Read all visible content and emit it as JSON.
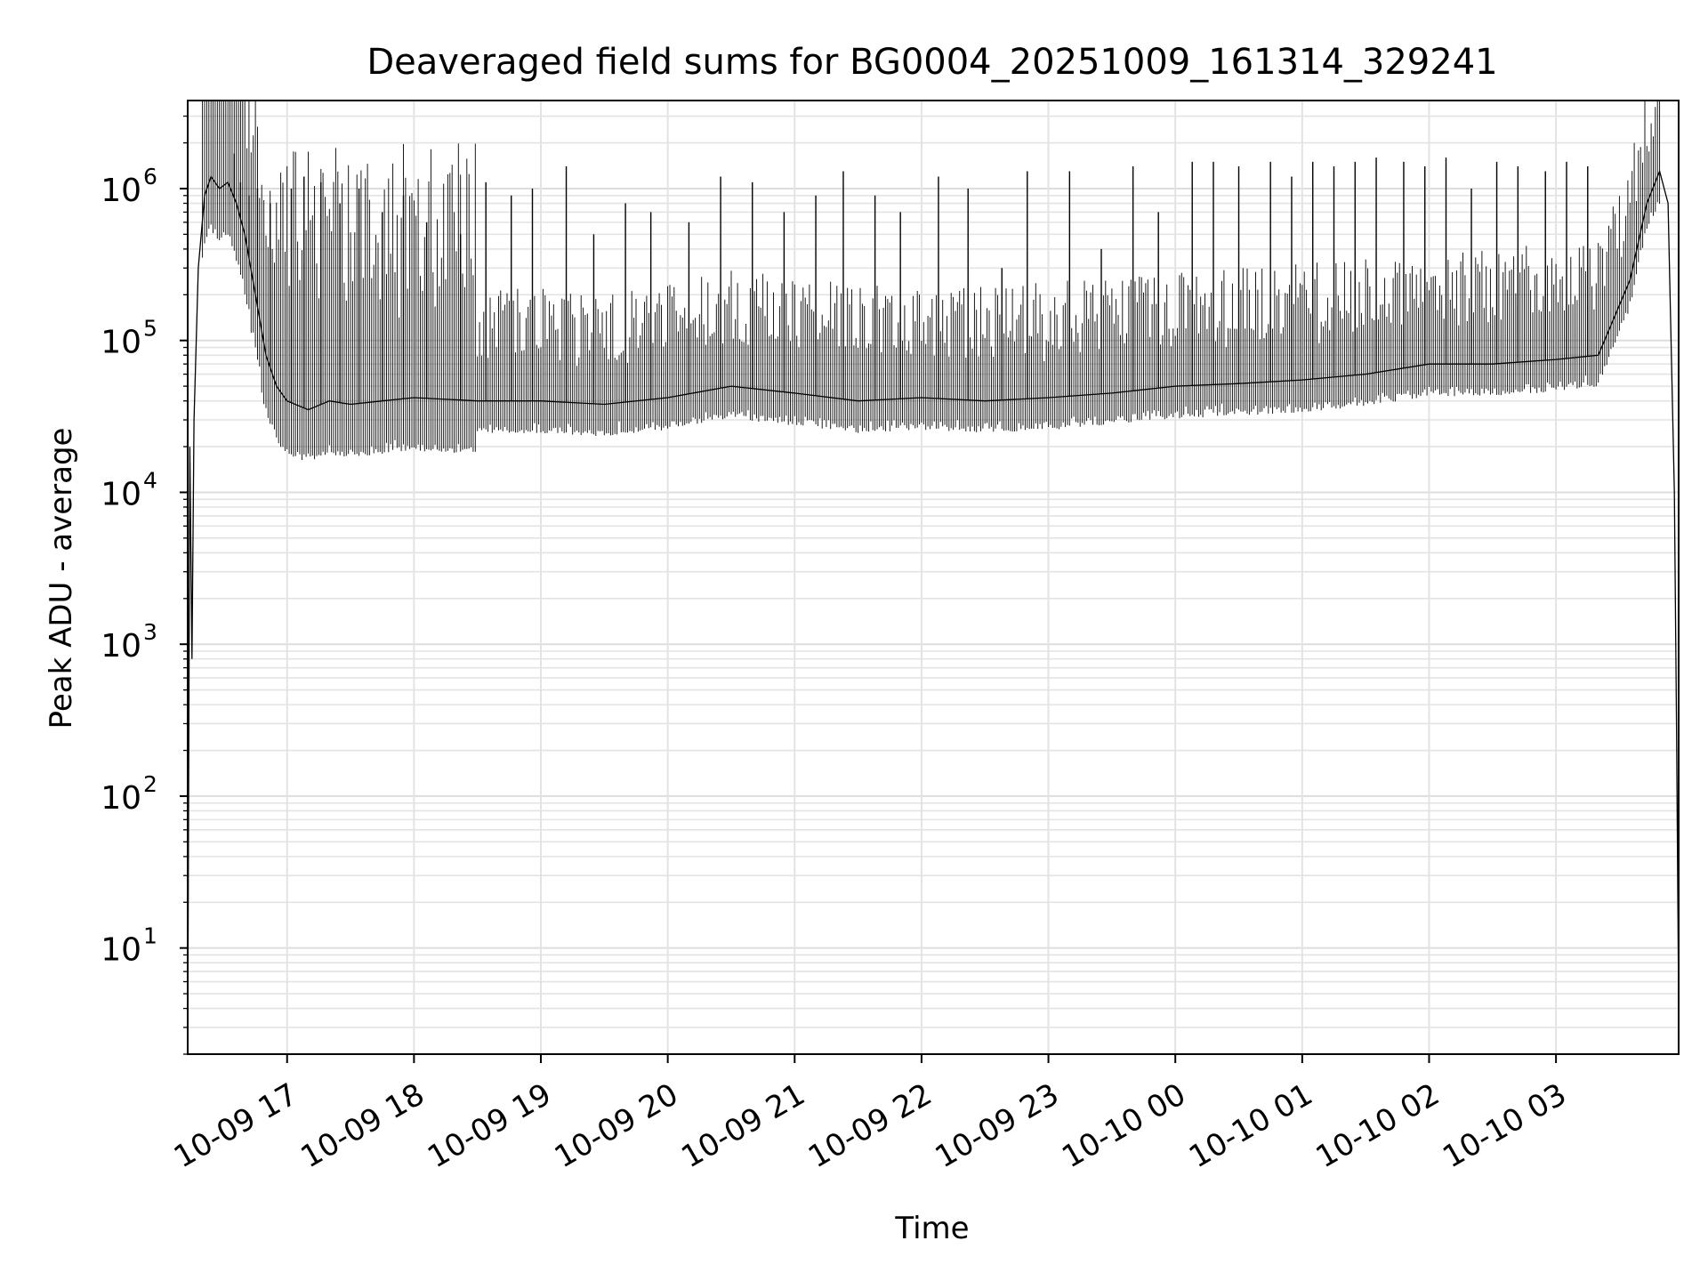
{
  "chart_data": {
    "type": "line",
    "title": "Deaveraged field sums for BG0004_20251009_161314_329241",
    "xlabel": "Time",
    "ylabel": "Peak ADU - average",
    "y_scale": "log",
    "ylim": [
      2,
      3800000
    ],
    "xlim": [
      "2025-10-09 16:13",
      "2025-10-10 03:58"
    ],
    "grid": true,
    "grid_minor": true,
    "legend": "none",
    "line_color": "#000000",
    "x_ticks": [
      {
        "value": "2025-10-09 17:00",
        "label": "10-09 17"
      },
      {
        "value": "2025-10-09 18:00",
        "label": "10-09 18"
      },
      {
        "value": "2025-10-09 19:00",
        "label": "10-09 19"
      },
      {
        "value": "2025-10-09 20:00",
        "label": "10-09 20"
      },
      {
        "value": "2025-10-09 21:00",
        "label": "10-09 21"
      },
      {
        "value": "2025-10-09 22:00",
        "label": "10-09 22"
      },
      {
        "value": "2025-10-09 23:00",
        "label": "10-09 23"
      },
      {
        "value": "2025-10-10 00:00",
        "label": "10-10 00"
      },
      {
        "value": "2025-10-10 01:00",
        "label": "10-10 01"
      },
      {
        "value": "2025-10-10 02:00",
        "label": "10-10 02"
      },
      {
        "value": "2025-10-10 03:00",
        "label": "10-10 03"
      }
    ],
    "y_ticks": [
      {
        "value": 10,
        "base": "10",
        "exp": "1"
      },
      {
        "value": 100,
        "base": "10",
        "exp": "2"
      },
      {
        "value": 1000,
        "base": "10",
        "exp": "3"
      },
      {
        "value": 10000,
        "base": "10",
        "exp": "4"
      },
      {
        "value": 100000,
        "base": "10",
        "exp": "5"
      },
      {
        "value": 1000000,
        "base": "10",
        "exp": "6"
      }
    ],
    "series": [
      {
        "x": [
          "2025-10-09 16:13",
          "2025-10-09 16:14",
          "2025-10-09 16:15",
          "2025-10-09 16:16",
          "2025-10-09 16:18",
          "2025-10-09 16:21",
          "2025-10-09 16:24",
          "2025-10-09 16:28",
          "2025-10-09 16:32",
          "2025-10-09 16:36",
          "2025-10-09 16:40",
          "2025-10-09 16:45",
          "2025-10-09 16:50",
          "2025-10-09 16:55",
          "2025-10-09 17:00",
          "2025-10-09 17:10",
          "2025-10-09 17:20",
          "2025-10-09 17:30",
          "2025-10-09 17:45",
          "2025-10-09 18:00",
          "2025-10-09 18:30",
          "2025-10-09 19:00",
          "2025-10-09 19:30",
          "2025-10-09 20:00",
          "2025-10-09 20:30",
          "2025-10-09 21:00",
          "2025-10-09 21:30",
          "2025-10-09 22:00",
          "2025-10-09 22:30",
          "2025-10-09 23:00",
          "2025-10-09 23:30",
          "2025-10-10 00:00",
          "2025-10-10 00:30",
          "2025-10-10 01:00",
          "2025-10-10 01:30",
          "2025-10-10 02:00",
          "2025-10-10 02:30",
          "2025-10-10 03:00",
          "2025-10-10 03:20",
          "2025-10-10 03:35",
          "2025-10-10 03:43",
          "2025-10-10 03:49",
          "2025-10-10 03:53",
          "2025-10-10 03:56",
          "2025-10-10 03:57",
          "2025-10-10 03:58"
        ],
        "y": [
          2,
          20000,
          800,
          30000,
          300000,
          900000,
          1200000,
          1000000,
          1100000,
          800000,
          500000,
          200000,
          80000,
          50000,
          40000,
          35000,
          40000,
          38000,
          40000,
          42000,
          40000,
          40000,
          38000,
          42000,
          50000,
          45000,
          40000,
          42000,
          40000,
          42000,
          45000,
          50000,
          52000,
          55000,
          60000,
          70000,
          70000,
          75000,
          80000,
          250000,
          800000,
          1300000,
          800000,
          10000,
          300,
          4
        ]
      }
    ],
    "spikes": {
      "x": [
        "2025-10-09 16:35",
        "2025-10-09 16:38",
        "2025-10-09 16:42",
        "2025-10-09 16:46",
        "2025-10-09 16:52",
        "2025-10-09 17:02",
        "2025-10-09 17:08",
        "2025-10-09 17:16",
        "2025-10-09 17:25",
        "2025-10-09 17:34",
        "2025-10-09 17:45",
        "2025-10-09 17:55",
        "2025-10-09 18:06",
        "2025-10-09 18:22",
        "2025-10-09 18:34",
        "2025-10-09 18:46",
        "2025-10-09 18:56",
        "2025-10-09 19:12",
        "2025-10-09 19:25",
        "2025-10-09 19:40",
        "2025-10-09 19:52",
        "2025-10-09 20:10",
        "2025-10-09 20:25",
        "2025-10-09 20:40",
        "2025-10-09 20:55",
        "2025-10-09 21:10",
        "2025-10-09 21:23",
        "2025-10-09 21:38",
        "2025-10-09 21:50",
        "2025-10-09 22:08",
        "2025-10-09 22:22",
        "2025-10-09 22:38",
        "2025-10-09 22:50",
        "2025-10-09 23:10",
        "2025-10-09 23:25",
        "2025-10-09 23:40",
        "2025-10-09 23:52",
        "2025-10-10 00:08",
        "2025-10-10 00:18",
        "2025-10-10 00:30",
        "2025-10-10 00:45",
        "2025-10-10 00:55",
        "2025-10-10 01:05",
        "2025-10-10 01:15",
        "2025-10-10 01:25",
        "2025-10-10 01:35",
        "2025-10-10 01:48",
        "2025-10-10 01:58",
        "2025-10-10 02:08",
        "2025-10-10 02:20",
        "2025-10-10 02:32",
        "2025-10-10 02:42",
        "2025-10-10 02:55",
        "2025-10-10 03:05",
        "2025-10-10 03:15"
      ],
      "y": [
        1700000,
        1100000,
        900000,
        1000000,
        800000,
        1000000,
        1200000,
        1100000,
        800000,
        1000000,
        700000,
        900000,
        600000,
        500000,
        1100000,
        900000,
        1000000,
        1400000,
        500000,
        800000,
        700000,
        600000,
        1200000,
        1100000,
        700000,
        900000,
        1300000,
        900000,
        700000,
        1200000,
        1000000,
        300000,
        1300000,
        1300000,
        400000,
        1400000,
        700000,
        1500000,
        1500000,
        1400000,
        1500000,
        1200000,
        1500000,
        1400000,
        1500000,
        1600000,
        1500000,
        1400000,
        1600000,
        1000000,
        1500000,
        1400000,
        1300000,
        1500000,
        1400000
      ]
    }
  }
}
